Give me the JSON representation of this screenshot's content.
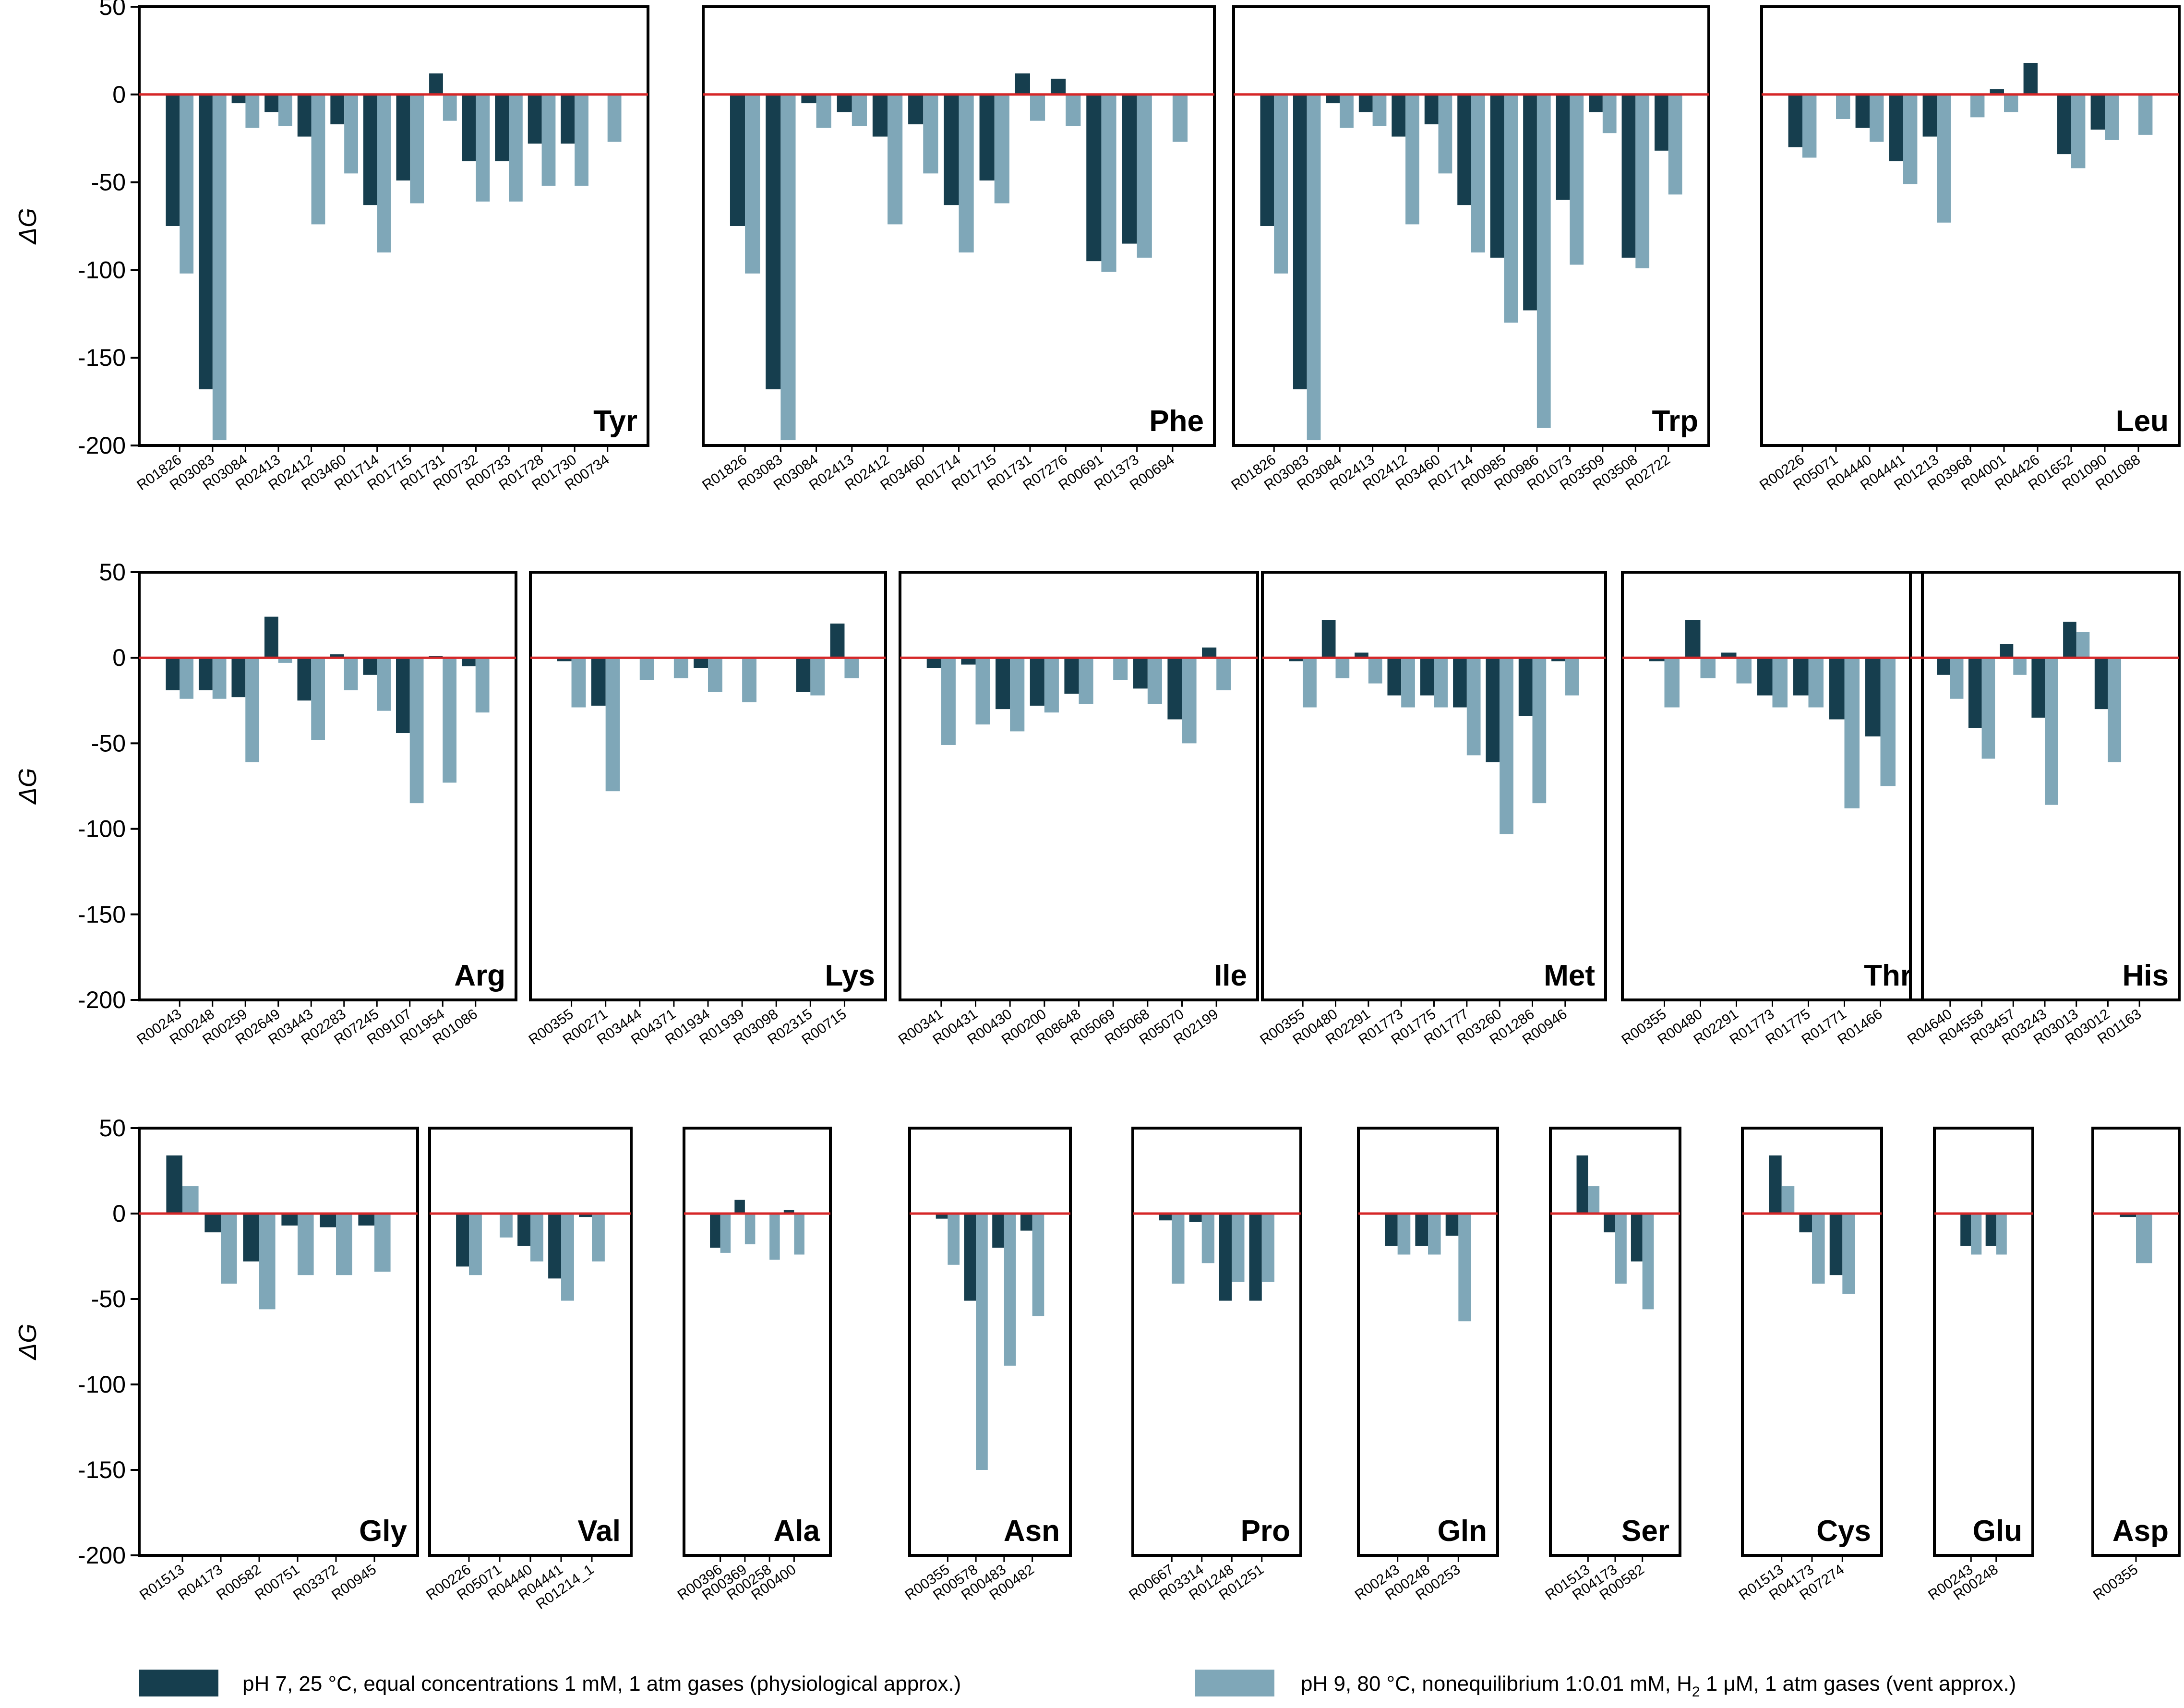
{
  "colors": {
    "dark": "#163E4E",
    "light": "#7FA7B8",
    "zero_line": "#D62728"
  },
  "y_label": "ΔG",
  "y_ticks": [
    "50",
    "0",
    "-50",
    "-100",
    "-150",
    "-200"
  ],
  "legend": {
    "dark_label": "pH 7, 25 °C, equal concentrations 1 mM, 1 atm gases (physiological approx.)",
    "light_prefix": "pH 9, 80 °C, nonequilibrium 1:0.01 mM, H",
    "light_sub": "2",
    "light_suffix": " 1 μM, 1 atm gases (vent approx.)"
  },
  "chart_data": [
    {
      "type": "bar",
      "title": "Tyr",
      "ylim": [
        -200,
        50
      ],
      "categories": [
        "R01826",
        "R03083",
        "R03084",
        "R02413",
        "R02412",
        "R03460",
        "R01714",
        "R01715",
        "R01731",
        "R00732",
        "R00733",
        "R01728",
        "R01730",
        "R00734"
      ],
      "series": [
        {
          "name": "pH 7",
          "values": [
            -75,
            -168,
            -5,
            -10,
            -24,
            -17,
            -63,
            -49,
            12,
            -38,
            -38,
            -28,
            -28,
            null
          ]
        },
        {
          "name": "pH 9",
          "values": [
            -102,
            -197,
            -19,
            -18,
            -74,
            -45,
            -90,
            -62,
            -15,
            -61,
            -61,
            -52,
            -52,
            -27
          ]
        }
      ]
    },
    {
      "type": "bar",
      "title": "Phe",
      "ylim": [
        -200,
        50
      ],
      "categories": [
        "R01826",
        "R03083",
        "R03084",
        "R02413",
        "R02412",
        "R03460",
        "R01714",
        "R01715",
        "R01731",
        "R07276",
        "R00691",
        "R01373",
        "R00694"
      ],
      "series": [
        {
          "name": "pH 7",
          "values": [
            -75,
            -168,
            -5,
            -10,
            -24,
            -17,
            -63,
            -49,
            12,
            9,
            -95,
            -85,
            null
          ]
        },
        {
          "name": "pH 9",
          "values": [
            -102,
            -197,
            -19,
            -18,
            -74,
            -45,
            -90,
            -62,
            -15,
            -18,
            -101,
            -93,
            -27
          ]
        }
      ]
    },
    {
      "type": "bar",
      "title": "Trp",
      "ylim": [
        -200,
        50
      ],
      "categories": [
        "R01826",
        "R03083",
        "R03084",
        "R02413",
        "R02412",
        "R03460",
        "R01714",
        "R00985",
        "R00986",
        "R01073",
        "R03509",
        "R03508",
        "R02722"
      ],
      "series": [
        {
          "name": "pH 7",
          "values": [
            -75,
            -168,
            -5,
            -10,
            -24,
            -17,
            -63,
            -93,
            -123,
            -60,
            -10,
            -93,
            -32
          ]
        },
        {
          "name": "pH 9",
          "values": [
            -102,
            -197,
            -19,
            -18,
            -74,
            -45,
            -90,
            -130,
            -190,
            -97,
            -22,
            -99,
            -57
          ]
        }
      ]
    },
    {
      "type": "bar",
      "title": "Leu",
      "ylim": [
        -200,
        50
      ],
      "categories": [
        "R00226",
        "R05071",
        "R04440",
        "R04441",
        "R01213",
        "R03968",
        "R04001",
        "R04426",
        "R01652",
        "R01090",
        "R01088"
      ],
      "series": [
        {
          "name": "pH 7",
          "values": [
            -30,
            null,
            -19,
            -38,
            -24,
            null,
            3,
            18,
            -34,
            -20,
            null
          ]
        },
        {
          "name": "pH 9",
          "values": [
            -36,
            -14,
            -27,
            -51,
            -73,
            -13,
            -10,
            null,
            -42,
            -26,
            -23
          ]
        }
      ]
    },
    {
      "type": "bar",
      "title": "Arg",
      "ylim": [
        -200,
        50
      ],
      "categories": [
        "R00243",
        "R00248",
        "R00259",
        "R02649",
        "R03443",
        "R02283",
        "R07245",
        "R09107",
        "R01954",
        "R01086"
      ],
      "series": [
        {
          "name": "pH 7",
          "values": [
            -19,
            -19,
            -23,
            24,
            -25,
            2,
            -10,
            -44,
            1,
            -5
          ]
        },
        {
          "name": "pH 9",
          "values": [
            -24,
            -24,
            -61,
            -3,
            -48,
            -19,
            -31,
            -85,
            -73,
            -32
          ]
        }
      ]
    },
    {
      "type": "bar",
      "title": "Lys",
      "ylim": [
        -200,
        50
      ],
      "categories": [
        "R00355",
        "R00271",
        "R03444",
        "R04371",
        "R01934",
        "R01939",
        "R03098",
        "R02315",
        "R00715"
      ],
      "series": [
        {
          "name": "pH 7",
          "values": [
            -2,
            -28,
            null,
            null,
            -6,
            null,
            null,
            -20,
            20
          ]
        },
        {
          "name": "pH 9",
          "values": [
            -29,
            -78,
            -13,
            -12,
            -20,
            -26,
            null,
            -22,
            -12
          ]
        }
      ]
    },
    {
      "type": "bar",
      "title": "Ile",
      "ylim": [
        -200,
        50
      ],
      "categories": [
        "R00341",
        "R00431",
        "R00430",
        "R00200",
        "R08648",
        "R05069",
        "R05068",
        "R05070",
        "R02199"
      ],
      "series": [
        {
          "name": "pH 7",
          "values": [
            -6,
            -4,
            -30,
            -28,
            -21,
            null,
            -18,
            -36,
            6
          ]
        },
        {
          "name": "pH 9",
          "values": [
            -51,
            -39,
            -43,
            -32,
            -27,
            -13,
            -27,
            -50,
            -19
          ]
        }
      ]
    },
    {
      "type": "bar",
      "title": "Met",
      "ylim": [
        -200,
        50
      ],
      "categories": [
        "R00355",
        "R00480",
        "R02291",
        "R01773",
        "R01775",
        "R01777",
        "R03260",
        "R01286",
        "R00946"
      ],
      "series": [
        {
          "name": "pH 7",
          "values": [
            -2,
            22,
            3,
            -22,
            -22,
            -29,
            -61,
            -34,
            -2
          ]
        },
        {
          "name": "pH 9",
          "values": [
            -29,
            -12,
            -15,
            -29,
            -29,
            -57,
            -103,
            -85,
            -22
          ]
        }
      ]
    },
    {
      "type": "bar",
      "title": "Thr",
      "ylim": [
        -200,
        50
      ],
      "categories": [
        "R00355",
        "R00480",
        "R02291",
        "R01773",
        "R01775",
        "R01771",
        "R01466"
      ],
      "series": [
        {
          "name": "pH 7",
          "values": [
            -2,
            22,
            3,
            -22,
            -22,
            -36,
            -46
          ]
        },
        {
          "name": "pH 9",
          "values": [
            -29,
            -12,
            -15,
            -29,
            -29,
            -88,
            -75
          ]
        }
      ]
    },
    {
      "type": "bar",
      "title": "His",
      "ylim": [
        -200,
        50
      ],
      "categories": [
        "R04640",
        "R04558",
        "R03457",
        "R03243",
        "R03013",
        "R03012",
        "R01163"
      ],
      "series": [
        {
          "name": "pH 7",
          "values": [
            -10,
            -41,
            8,
            -35,
            21,
            -30,
            null
          ]
        },
        {
          "name": "pH 9",
          "values": [
            -24,
            -59,
            -10,
            -86,
            15,
            -61,
            null
          ]
        }
      ]
    },
    {
      "type": "bar",
      "title": "Gly",
      "ylim": [
        -200,
        50
      ],
      "categories": [
        "R01513",
        "R04173",
        "R00582",
        "R00751",
        "R03372",
        "R00945"
      ],
      "series": [
        {
          "name": "pH 7",
          "values": [
            34,
            -11,
            -28,
            -7,
            -8,
            -7
          ]
        },
        {
          "name": "pH 9",
          "values": [
            16,
            -41,
            -56,
            -36,
            -36,
            -34
          ]
        }
      ]
    },
    {
      "type": "bar",
      "title": "Val",
      "ylim": [
        -200,
        50
      ],
      "categories": [
        "R00226",
        "R05071",
        "R04440",
        "R04441",
        "R01214_1"
      ],
      "series": [
        {
          "name": "pH 7",
          "values": [
            -31,
            null,
            -19,
            -38,
            -2
          ]
        },
        {
          "name": "pH 9",
          "values": [
            -36,
            -14,
            -28,
            -51,
            -28
          ]
        }
      ]
    },
    {
      "type": "bar",
      "title": "Ala",
      "ylim": [
        -200,
        50
      ],
      "categories": [
        "R00396",
        "R00369",
        "R00258",
        "R00400"
      ],
      "series": [
        {
          "name": "pH 7",
          "values": [
            -20,
            8,
            null,
            2
          ]
        },
        {
          "name": "pH 9",
          "values": [
            -23,
            -18,
            -27,
            -24
          ]
        }
      ]
    },
    {
      "type": "bar",
      "title": "Asn",
      "ylim": [
        -200,
        50
      ],
      "categories": [
        "R00355",
        "R00578",
        "R00483",
        "R00482"
      ],
      "series": [
        {
          "name": "pH 7",
          "values": [
            -3,
            -51,
            -20,
            -10
          ]
        },
        {
          "name": "pH 9",
          "values": [
            -30,
            -150,
            -89,
            -60
          ]
        }
      ]
    },
    {
      "type": "bar",
      "title": "Pro",
      "ylim": [
        -200,
        50
      ],
      "categories": [
        "R00667",
        "R03314",
        "R01248",
        "R01251"
      ],
      "series": [
        {
          "name": "pH 7",
          "values": [
            -4,
            -5,
            -51,
            -51
          ]
        },
        {
          "name": "pH 9",
          "values": [
            -41,
            -29,
            -40,
            -40
          ]
        }
      ]
    },
    {
      "type": "bar",
      "title": "Gln",
      "ylim": [
        -200,
        50
      ],
      "categories": [
        "R00243",
        "R00248",
        "R00253"
      ],
      "series": [
        {
          "name": "pH 7",
          "values": [
            -19,
            -19,
            -13
          ]
        },
        {
          "name": "pH 9",
          "values": [
            -24,
            -24,
            -63
          ]
        }
      ]
    },
    {
      "type": "bar",
      "title": "Ser",
      "ylim": [
        -200,
        50
      ],
      "categories": [
        "R01513",
        "R04173",
        "R00582"
      ],
      "series": [
        {
          "name": "pH 7",
          "values": [
            34,
            -11,
            -28
          ]
        },
        {
          "name": "pH 9",
          "values": [
            16,
            -41,
            -56
          ]
        }
      ]
    },
    {
      "type": "bar",
      "title": "Cys",
      "ylim": [
        -200,
        50
      ],
      "categories": [
        "R01513",
        "R04173",
        "R07274"
      ],
      "series": [
        {
          "name": "pH 7",
          "values": [
            34,
            -11,
            -36
          ]
        },
        {
          "name": "pH 9",
          "values": [
            16,
            -41,
            -47
          ]
        }
      ]
    },
    {
      "type": "bar",
      "title": "Glu",
      "ylim": [
        -200,
        50
      ],
      "categories": [
        "R00243",
        "R00248"
      ],
      "series": [
        {
          "name": "pH 7",
          "values": [
            -19,
            -19
          ]
        },
        {
          "name": "pH 9",
          "values": [
            -24,
            -24
          ]
        }
      ]
    },
    {
      "type": "bar",
      "title": "Asp",
      "ylim": [
        -200,
        50
      ],
      "categories": [
        "R00355"
      ],
      "series": [
        {
          "name": "pH 7",
          "values": [
            -2
          ]
        },
        {
          "name": "pH 9",
          "values": [
            -29
          ]
        }
      ]
    }
  ]
}
